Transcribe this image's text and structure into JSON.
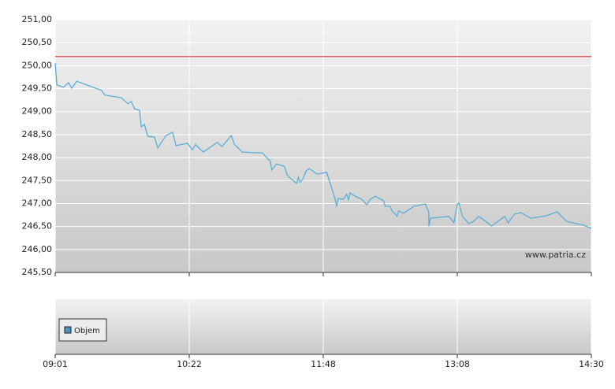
{
  "chart_data": {
    "type": "line",
    "x": [
      541,
      542,
      546,
      549,
      551,
      554,
      569,
      571,
      581,
      585,
      587,
      589,
      592,
      593,
      595,
      597,
      601,
      603,
      608,
      612,
      614,
      621,
      624,
      626,
      631,
      640,
      643,
      649,
      651,
      656,
      669,
      674,
      675,
      678,
      683,
      685,
      689,
      691,
      692,
      693,
      695,
      697,
      699,
      704,
      710,
      715,
      716,
      717,
      720,
      722,
      723,
      724,
      726,
      731,
      734,
      736,
      739,
      744,
      745,
      748,
      749,
      751,
      752,
      753,
      756,
      762,
      769,
      771,
      771,
      772,
      783,
      786,
      788,
      789,
      791,
      795,
      798,
      801,
      804,
      809,
      817,
      819,
      823,
      827,
      833,
      842,
      849,
      855,
      865,
      870
    ],
    "series": [
      {
        "color": "#5aaed6",
        "values": [
          250.06,
          249.58,
          249.53,
          249.63,
          249.51,
          249.66,
          249.46,
          249.36,
          249.3,
          249.17,
          249.22,
          249.06,
          249.03,
          248.67,
          248.72,
          248.46,
          248.45,
          248.21,
          248.48,
          248.55,
          248.26,
          248.31,
          248.17,
          248.28,
          248.12,
          248.33,
          248.24,
          248.48,
          248.29,
          248.12,
          248.1,
          247.92,
          247.73,
          247.86,
          247.81,
          247.61,
          247.49,
          247.44,
          247.57,
          247.46,
          247.54,
          247.71,
          247.76,
          247.64,
          247.68,
          247.11,
          246.94,
          247.11,
          247.09,
          247.2,
          247.08,
          247.23,
          247.18,
          247.09,
          246.97,
          247.09,
          247.16,
          247.06,
          246.94,
          246.94,
          246.84,
          246.77,
          246.72,
          246.84,
          246.79,
          246.94,
          246.99,
          246.8,
          246.51,
          246.68,
          246.72,
          246.58,
          246.99,
          247.01,
          246.73,
          246.56,
          246.61,
          246.72,
          246.65,
          246.51,
          246.72,
          246.58,
          246.77,
          246.8,
          246.68,
          246.73,
          246.82,
          246.61,
          246.53,
          246.46
        ]
      }
    ],
    "reference_line": {
      "value": 250.2,
      "color": "#e06060"
    },
    "xlim": [
      541,
      870
    ],
    "xticks": [
      {
        "value": 541,
        "label": "09:01"
      },
      {
        "value": 622,
        "label": "10:22"
      },
      {
        "value": 708,
        "label": "11:48"
      },
      {
        "value": 788,
        "label": "13:08"
      },
      {
        "value": 870,
        "label": "14:30"
      }
    ],
    "ylim": [
      245.5,
      251
    ],
    "yticks": [
      {
        "value": 245.5,
        "label": "245,50"
      },
      {
        "value": 246,
        "label": "246,00"
      },
      {
        "value": 246.5,
        "label": "246,50"
      },
      {
        "value": 247,
        "label": "247,00"
      },
      {
        "value": 247.5,
        "label": "247,50"
      },
      {
        "value": 248,
        "label": "248,00"
      },
      {
        "value": 248.5,
        "label": "248,50"
      },
      {
        "value": 249,
        "label": "249,00"
      },
      {
        "value": 249.5,
        "label": "249,50"
      },
      {
        "value": 250,
        "label": "250,00"
      },
      {
        "value": 250.5,
        "label": "250,50"
      },
      {
        "value": 251,
        "label": "251,00"
      }
    ],
    "grid": true,
    "watermark": "www.patria.cz",
    "volume_panel": {
      "legend": "Objem",
      "color": "#4a90c0"
    }
  }
}
